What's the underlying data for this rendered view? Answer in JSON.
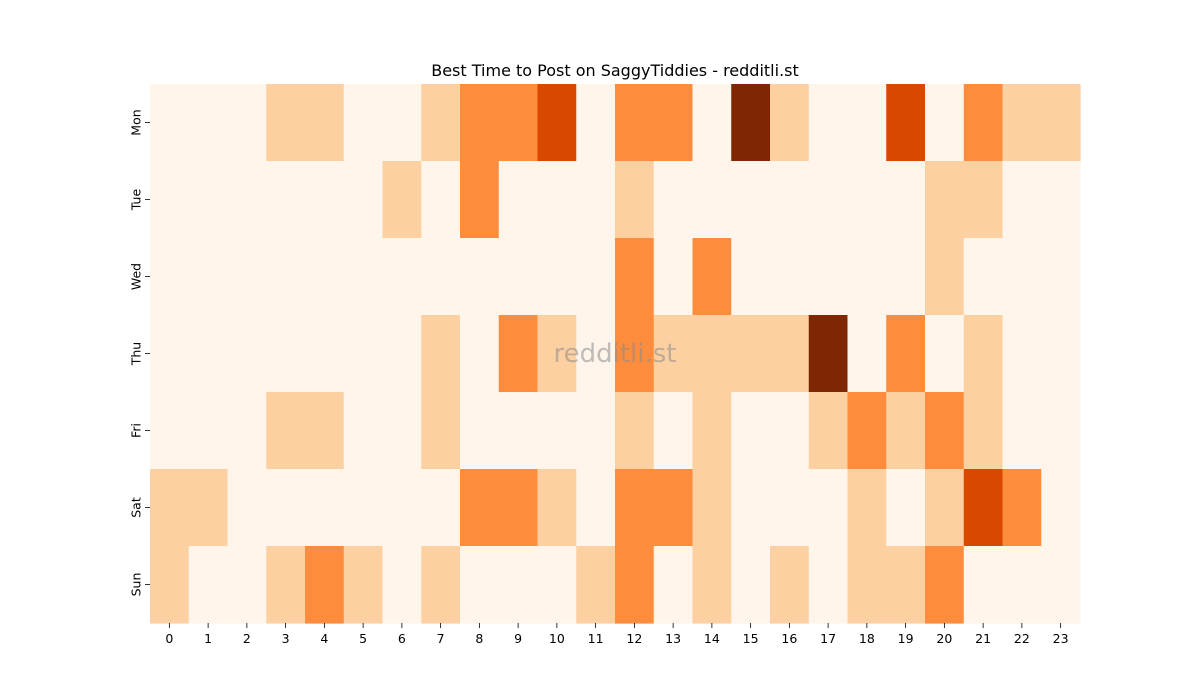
{
  "chart_data": {
    "type": "heatmap",
    "title": "Best Time to Post on SaggyTiddies - redditli.st",
    "watermark": "redditli.st",
    "xlabel": "",
    "ylabel": "",
    "x": [
      "0",
      "1",
      "2",
      "3",
      "4",
      "5",
      "6",
      "7",
      "8",
      "9",
      "10",
      "11",
      "12",
      "13",
      "14",
      "15",
      "16",
      "17",
      "18",
      "19",
      "20",
      "21",
      "22",
      "23"
    ],
    "y": [
      "Mon",
      "Tue",
      "Wed",
      "Thu",
      "Fri",
      "Sat",
      "Sun"
    ],
    "levels": 4,
    "values": [
      [
        0,
        0,
        0,
        1,
        1,
        0,
        0,
        1,
        2,
        2,
        3,
        0,
        2,
        2,
        0,
        4,
        1,
        0,
        0,
        3,
        0,
        2,
        1,
        1
      ],
      [
        0,
        0,
        0,
        0,
        0,
        0,
        1,
        0,
        2,
        0,
        0,
        0,
        1,
        0,
        0,
        0,
        0,
        0,
        0,
        0,
        1,
        1,
        0,
        0
      ],
      [
        0,
        0,
        0,
        0,
        0,
        0,
        0,
        0,
        0,
        0,
        0,
        0,
        2,
        0,
        2,
        0,
        0,
        0,
        0,
        0,
        1,
        0,
        0,
        0
      ],
      [
        0,
        0,
        0,
        0,
        0,
        0,
        0,
        1,
        0,
        2,
        1,
        0,
        2,
        1,
        1,
        1,
        1,
        4,
        0,
        2,
        0,
        1,
        0,
        0
      ],
      [
        0,
        0,
        0,
        1,
        1,
        0,
        0,
        1,
        0,
        0,
        0,
        0,
        1,
        0,
        1,
        0,
        0,
        1,
        2,
        1,
        2,
        1,
        0,
        0
      ],
      [
        1,
        1,
        0,
        0,
        0,
        0,
        0,
        0,
        2,
        2,
        1,
        0,
        2,
        2,
        1,
        0,
        0,
        0,
        1,
        0,
        1,
        3,
        2,
        0
      ],
      [
        1,
        0,
        0,
        1,
        2,
        1,
        0,
        1,
        0,
        0,
        0,
        1,
        2,
        0,
        1,
        0,
        1,
        0,
        1,
        1,
        2,
        0,
        0,
        0
      ]
    ],
    "colors": [
      "#fff5eb",
      "#fdd0a2",
      "#fd8d3c",
      "#d94801",
      "#7f2704"
    ],
    "grid": false,
    "legend": "none"
  }
}
